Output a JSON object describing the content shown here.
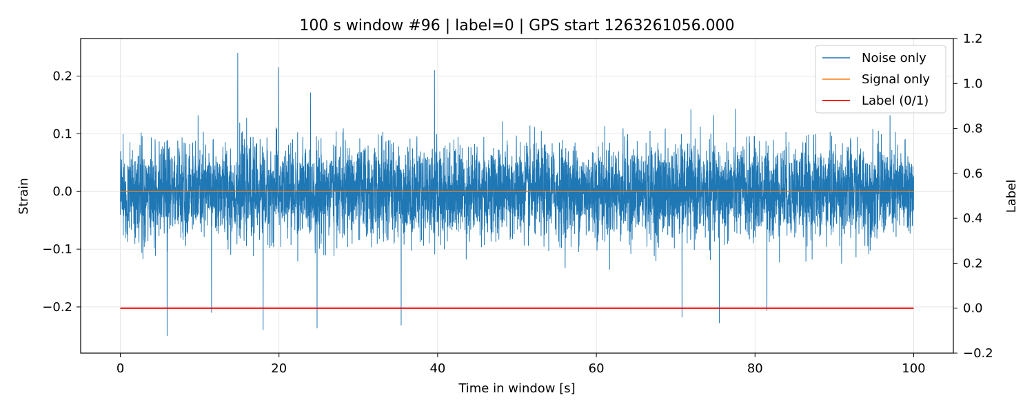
{
  "chart_data": {
    "type": "line",
    "title": "100 s window #96 | label=0 | GPS start 1263261056.000",
    "xlabel": "Time in window [s]",
    "ylabel": "Strain",
    "y2label": "Label",
    "xlim": [
      -5,
      105
    ],
    "ylim": [
      -0.28,
      0.265
    ],
    "y2lim": [
      -0.2,
      1.2
    ],
    "xticks": [
      0,
      20,
      40,
      60,
      80,
      100
    ],
    "xtick_labels": [
      "0",
      "20",
      "40",
      "60",
      "80",
      "100"
    ],
    "yticks": [
      -0.2,
      -0.1,
      0.0,
      0.1,
      0.2
    ],
    "ytick_labels": [
      "−0.2",
      "−0.1",
      "0.0",
      "0.1",
      "0.2"
    ],
    "y2ticks": [
      -0.2,
      0.0,
      0.2,
      0.4,
      0.6,
      0.8,
      1.0,
      1.2
    ],
    "y2tick_labels": [
      "−0.2",
      "0.0",
      "0.2",
      "0.4",
      "0.6",
      "0.8",
      "1.0",
      "1.2"
    ],
    "grid": true,
    "legend_position": "top-right",
    "series": [
      {
        "name": "Noise only",
        "axis": "left",
        "color": "#1f77b4",
        "description": "dense noise trace, approx ±0.1 strain around 0",
        "x_range": [
          0,
          100
        ],
        "typical_amplitude": 0.1,
        "peaks": [
          {
            "x": 14.8,
            "y": 0.24
          },
          {
            "x": 19.9,
            "y": 0.215
          },
          {
            "x": 39.6,
            "y": 0.21
          },
          {
            "x": 5.9,
            "y": -0.25
          },
          {
            "x": 18.0,
            "y": -0.24
          },
          {
            "x": 24.8,
            "y": -0.237
          },
          {
            "x": 35.4,
            "y": -0.232
          },
          {
            "x": 75.5,
            "y": -0.228
          },
          {
            "x": 70.8,
            "y": -0.218
          },
          {
            "x": 11.5,
            "y": -0.21
          },
          {
            "x": 81.5,
            "y": -0.207
          }
        ]
      },
      {
        "name": "Signal only",
        "axis": "left",
        "color": "#ff7f0e",
        "x": [
          0,
          100
        ],
        "y": [
          0,
          0
        ]
      },
      {
        "name": "Label (0/1)",
        "axis": "right",
        "color": "#ff0000",
        "x": [
          0,
          100
        ],
        "y": [
          0,
          0
        ]
      }
    ]
  }
}
